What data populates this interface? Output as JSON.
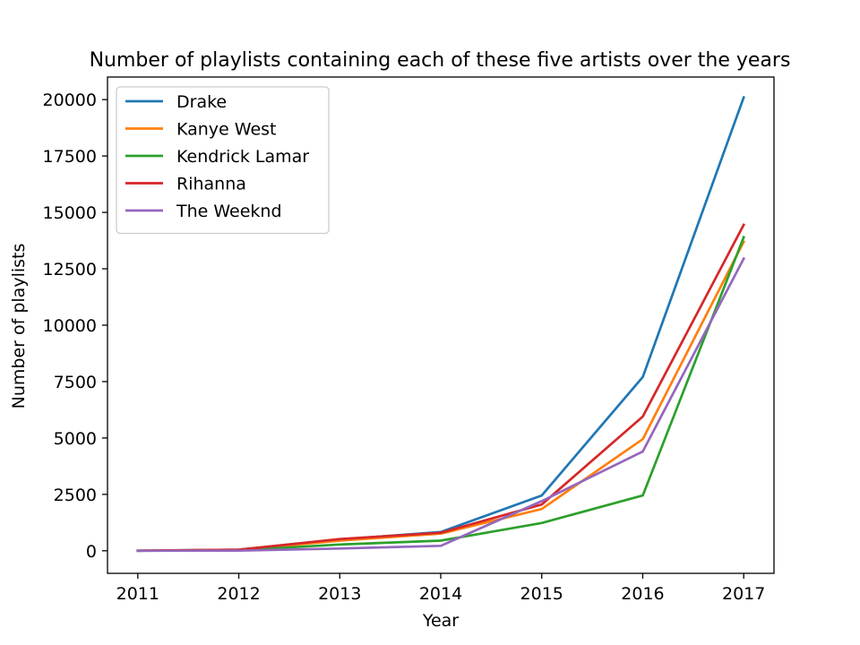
{
  "chart_data": {
    "type": "line",
    "title": "Number of playlists containing each of these five artists over the years",
    "xlabel": "Year",
    "ylabel": "Number of playlists",
    "x": [
      2011,
      2012,
      2013,
      2014,
      2015,
      2016,
      2017
    ],
    "xlim": [
      2010.7,
      2017.3
    ],
    "ylim": [
      -1000,
      21000
    ],
    "yticks": [
      0,
      2500,
      5000,
      7500,
      10000,
      12500,
      15000,
      17500,
      20000
    ],
    "ytick_labels": [
      "0",
      "2500",
      "5000",
      "7500",
      "10000",
      "12500",
      "15000",
      "17500",
      "20000"
    ],
    "xticks": [
      2011,
      2012,
      2013,
      2014,
      2015,
      2016,
      2017
    ],
    "xtick_labels": [
      "2011",
      "2012",
      "2013",
      "2014",
      "2015",
      "2016",
      "2017"
    ],
    "grid": false,
    "legend_position": "top-left",
    "series": [
      {
        "name": "Drake",
        "color": "#1f77b4",
        "values": [
          5,
          50,
          500,
          830,
          2450,
          7700,
          20100
        ]
      },
      {
        "name": "Kanye West",
        "color": "#ff7f0e",
        "values": [
          5,
          40,
          450,
          760,
          1850,
          4950,
          13700
        ]
      },
      {
        "name": "Kendrick Lamar",
        "color": "#2ca02c",
        "values": [
          0,
          20,
          280,
          450,
          1230,
          2450,
          13900
        ]
      },
      {
        "name": "Rihanna",
        "color": "#d62728",
        "values": [
          5,
          50,
          520,
          800,
          2050,
          5950,
          14450
        ]
      },
      {
        "name": "The Weeknd",
        "color": "#9467bd",
        "values": [
          0,
          5,
          100,
          220,
          2200,
          4400,
          12950
        ]
      }
    ]
  }
}
